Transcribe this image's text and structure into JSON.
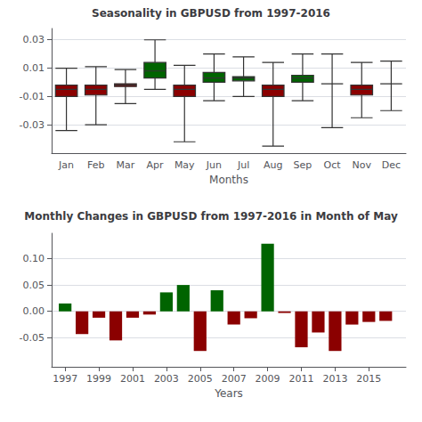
{
  "chart_data": [
    {
      "type": "boxplot",
      "title": "Seasonality in GBPUSD from 1997-2016",
      "xlabel": "Months",
      "categories": [
        "Jan",
        "Feb",
        "Mar",
        "Apr",
        "May",
        "Jun",
        "Jul",
        "Aug",
        "Sep",
        "Oct",
        "Nov",
        "Dec"
      ],
      "whisker_lo": [
        -0.034,
        -0.03,
        -0.015,
        -0.005,
        -0.042,
        -0.013,
        -0.01,
        -0.045,
        -0.013,
        -0.032,
        -0.025,
        -0.02
      ],
      "q1": [
        -0.01,
        -0.009,
        -0.003,
        0.003,
        -0.01,
        0.0,
        0.001,
        -0.01,
        0.0,
        -0.001,
        -0.009,
        -0.001
      ],
      "median": [
        -0.005,
        -0.005,
        -0.002,
        0.008,
        -0.005,
        0.003,
        0.003,
        -0.005,
        0.003,
        -0.001,
        -0.005,
        -0.001
      ],
      "q3": [
        -0.002,
        -0.002,
        -0.001,
        0.014,
        -0.002,
        0.007,
        0.004,
        -0.002,
        0.005,
        -0.001,
        -0.002,
        -0.001
      ],
      "whisker_hi": [
        0.01,
        0.011,
        0.009,
        0.03,
        0.012,
        0.02,
        0.018,
        0.014,
        0.02,
        0.02,
        0.014,
        0.015
      ],
      "colors": [
        "#8B0000",
        "#8B0000",
        "#8B0000",
        "#006400",
        "#8B0000",
        "#006400",
        "#006400",
        "#8B0000",
        "#006400",
        "#8B0000",
        "#8B0000",
        "#8B0000"
      ],
      "ylim": [
        -0.05,
        0.038
      ],
      "yticks": [
        -0.03,
        -0.01,
        0.01,
        0.03
      ],
      "grid": true
    },
    {
      "type": "bar",
      "title": "Monthly Changes in GBPUSD from 1997-2016 in Month of May",
      "xlabel": "Years",
      "x": [
        1997,
        1998,
        1999,
        2000,
        2001,
        2002,
        2003,
        2004,
        2005,
        2006,
        2007,
        2008,
        2009,
        2010,
        2011,
        2012,
        2013,
        2014,
        2015,
        2016
      ],
      "values": [
        0.015,
        -0.043,
        -0.012,
        -0.055,
        -0.012,
        -0.006,
        0.036,
        0.05,
        -0.075,
        0.04,
        -0.025,
        -0.013,
        0.128,
        -0.003,
        -0.068,
        -0.04,
        -0.075,
        -0.025,
        -0.02,
        -0.018
      ],
      "colors": [
        "#006400",
        "#8B0000",
        "#8B0000",
        "#8B0000",
        "#8B0000",
        "#8B0000",
        "#006400",
        "#006400",
        "#8B0000",
        "#006400",
        "#8B0000",
        "#8B0000",
        "#006400",
        "#8B0000",
        "#8B0000",
        "#8B0000",
        "#8B0000",
        "#8B0000",
        "#8B0000",
        "#8B0000"
      ],
      "xlim": [
        1996.2,
        2017.2
      ],
      "xticks": [
        1997,
        1999,
        2001,
        2003,
        2005,
        2007,
        2009,
        2011,
        2013,
        2015
      ],
      "ylim": [
        -0.105,
        0.148
      ],
      "yticks": [
        -0.05,
        {
          "value": 0,
          "label": "0.00"
        },
        0.05,
        {
          "value": 0.1,
          "label": "0.10"
        }
      ],
      "grid": true
    }
  ]
}
